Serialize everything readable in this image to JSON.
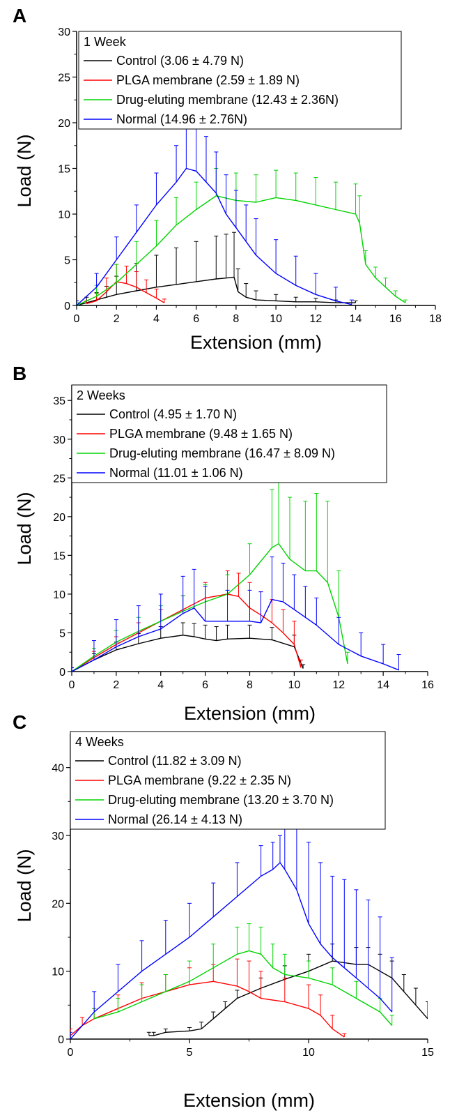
{
  "chart_data": [
    {
      "type": "line",
      "panel_label": "A",
      "legend_title": "1 Week",
      "xlabel": "Extension (mm)",
      "ylabel": "Load (N)",
      "xlim": [
        0,
        18
      ],
      "ylim": [
        0,
        30
      ],
      "xticks": [
        0,
        2,
        4,
        6,
        8,
        10,
        12,
        14,
        16,
        18
      ],
      "yticks": [
        0,
        5,
        10,
        15,
        20,
        25,
        30
      ],
      "legend_position": "top-left",
      "grid": false,
      "series": [
        {
          "name": "Control (3.06 ± 4.79 N)",
          "color": "#000000",
          "x": [
            0,
            0.5,
            1,
            1.5,
            2,
            3,
            4,
            5,
            6,
            7,
            7.5,
            7.9,
            8.1,
            8.5,
            9,
            10,
            11,
            12,
            13,
            14
          ],
          "y": [
            0,
            0.3,
            0.6,
            0.9,
            1.2,
            1.6,
            2.0,
            2.3,
            2.6,
            2.9,
            3.0,
            3.1,
            1.5,
            0.9,
            0.6,
            0.5,
            0.4,
            0.4,
            0.3,
            0.3
          ],
          "err": [
            0.5,
            0.6,
            0.8,
            1.2,
            2.0,
            3.0,
            3.5,
            4.0,
            4.4,
            4.7,
            4.8,
            4.9,
            2.5,
            1.5,
            1.0,
            0.7,
            0.5,
            0.4,
            0.3,
            0.2
          ]
        },
        {
          "name": "PLGA membrane (2.59 ± 1.89 N)",
          "color": "#ff0000",
          "x": [
            0.5,
            1,
            1.5,
            2,
            2.5,
            3,
            3.5,
            4,
            4.4
          ],
          "y": [
            0.2,
            0.5,
            1.5,
            2.6,
            2.4,
            2.0,
            1.4,
            0.8,
            0.3
          ],
          "err": [
            0.3,
            0.8,
            1.5,
            1.9,
            1.9,
            1.7,
            1.4,
            1.0,
            0.4
          ]
        },
        {
          "name": "Drug-eluting membrane (12.43 ± 2.36N)",
          "color": "#00d400",
          "x": [
            0,
            1,
            2,
            3,
            4,
            5,
            6,
            7,
            8,
            9,
            10,
            11,
            12,
            13,
            14,
            14.2,
            14.5,
            15,
            15.5,
            16,
            16.5
          ],
          "y": [
            0,
            1.0,
            2.5,
            4.5,
            6.5,
            8.8,
            10.5,
            12.0,
            11.5,
            11.3,
            11.8,
            11.5,
            11.0,
            10.5,
            10.0,
            9.0,
            4.5,
            3.0,
            2.0,
            1.0,
            0.3
          ],
          "err": [
            0.3,
            1.2,
            2.0,
            2.5,
            2.8,
            3.0,
            3.0,
            3.0,
            3.0,
            3.0,
            3.0,
            3.0,
            3.0,
            3.0,
            3.3,
            3.0,
            1.5,
            1.2,
            1.0,
            0.6,
            0.3
          ]
        },
        {
          "name": "Normal (14.96 ± 2.76N)",
          "color": "#0000ff",
          "x": [
            0,
            1,
            2,
            3,
            4,
            5,
            5.5,
            6,
            6.5,
            7,
            7.5,
            8,
            8.5,
            9,
            10,
            11,
            12,
            13,
            13.8
          ],
          "y": [
            0,
            2.0,
            5.0,
            8.0,
            11.0,
            13.5,
            15.0,
            14.7,
            13.5,
            12.3,
            10.0,
            8.5,
            7.0,
            5.5,
            3.5,
            2.2,
            1.2,
            0.5,
            0.1
          ],
          "err": [
            0.5,
            1.5,
            2.5,
            3.0,
            3.5,
            4.0,
            4.8,
            5.2,
            5.0,
            4.5,
            4.3,
            4.1,
            4.0,
            4.0,
            3.7,
            3.2,
            2.3,
            1.5,
            0.5
          ]
        }
      ]
    },
    {
      "type": "line",
      "panel_label": "B",
      "legend_title": "2 Weeks",
      "xlabel": "Extension (mm)",
      "ylabel": "Load (N)",
      "xlim": [
        0,
        16
      ],
      "ylim": [
        0,
        37
      ],
      "xticks": [
        0,
        2,
        4,
        6,
        8,
        10,
        12,
        14,
        16
      ],
      "yticks": [
        0,
        5,
        10,
        15,
        20,
        25,
        30,
        35
      ],
      "legend_position": "top-left",
      "grid": false,
      "series": [
        {
          "name": "Control (4.95 ± 1.70 N)",
          "color": "#000000",
          "x": [
            0,
            1,
            2,
            3,
            4,
            5,
            5.5,
            6,
            6.5,
            7,
            8,
            9,
            10,
            10.4
          ],
          "y": [
            0,
            1.5,
            2.8,
            3.6,
            4.3,
            4.7,
            4.5,
            4.2,
            4.0,
            4.2,
            4.3,
            4.1,
            3.2,
            0.4
          ],
          "err": [
            0.5,
            0.8,
            1.0,
            1.3,
            1.5,
            1.6,
            1.7,
            1.8,
            1.8,
            1.8,
            1.7,
            1.6,
            1.5,
            0.5
          ]
        },
        {
          "name": "PLGA membrane (9.48 ± 1.65 N)",
          "color": "#ff0000",
          "x": [
            0,
            1,
            2,
            3,
            4,
            5,
            6,
            7,
            7.5,
            8,
            8.5,
            9,
            9.5,
            10,
            10.3
          ],
          "y": [
            0,
            1.8,
            3.5,
            5.0,
            6.5,
            8.0,
            9.5,
            10.0,
            9.7,
            8.2,
            7.3,
            6.3,
            5.0,
            3.5,
            0.5
          ],
          "err": [
            0.5,
            0.8,
            1.0,
            1.3,
            1.5,
            1.8,
            2.0,
            3.0,
            3.0,
            3.3,
            3.0,
            3.0,
            3.0,
            3.0,
            1.0
          ]
        },
        {
          "name": "Drug-eluting membrane (16.47 ± 8.09 N)",
          "color": "#00d400",
          "x": [
            0,
            1,
            2,
            3,
            4,
            5,
            6,
            7,
            8,
            9,
            9.3,
            9.8,
            10.5,
            11,
            11.5,
            12,
            12.4
          ],
          "y": [
            0,
            2.0,
            3.8,
            5.2,
            6.5,
            7.8,
            9.0,
            10.0,
            12.5,
            16.0,
            16.5,
            14.5,
            13.0,
            13.0,
            11.5,
            7.0,
            1.0
          ],
          "err": [
            0.5,
            1.0,
            1.5,
            1.8,
            2.0,
            2.0,
            2.2,
            2.5,
            4.0,
            7.5,
            8.0,
            8.0,
            9.0,
            10.0,
            10.5,
            6.0,
            1.5
          ]
        },
        {
          "name": "Normal (11.01 ± 1.06 N)",
          "color": "#0000ff",
          "x": [
            0,
            1,
            2,
            3,
            4,
            5,
            5.5,
            6,
            7,
            8,
            8.5,
            9,
            9.5,
            10,
            10.5,
            11,
            12,
            13,
            14,
            14.7
          ],
          "y": [
            0,
            1.5,
            3.2,
            4.5,
            5.5,
            7.5,
            8.2,
            6.5,
            6.5,
            6.5,
            6.3,
            9.3,
            9.0,
            8.0,
            7.0,
            6.0,
            3.5,
            2.0,
            1.0,
            0.2
          ],
          "err": [
            0.5,
            2.5,
            3.5,
            4.0,
            4.5,
            4.8,
            5.0,
            4.5,
            4.0,
            4.0,
            4.0,
            5.5,
            5.0,
            4.5,
            4.0,
            3.5,
            3.5,
            3.0,
            2.5,
            2.0
          ]
        }
      ]
    },
    {
      "type": "line",
      "panel_label": "C",
      "legend_title": "4 Weeks",
      "xlabel": "Extension (mm)",
      "ylabel": "Load (N)",
      "xlim": [
        0,
        15
      ],
      "ylim": [
        0,
        45
      ],
      "xticks": [
        0,
        5,
        10,
        15
      ],
      "yticks": [
        0,
        10,
        20,
        30,
        40
      ],
      "legend_position": "top-left",
      "grid": false,
      "series": [
        {
          "name": "Control (11.82 ± 3.09 N)",
          "color": "#000000",
          "x": [
            3.3,
            3.5,
            4,
            5,
            5.5,
            6,
            6.5,
            7,
            8,
            9,
            10,
            11,
            12,
            12.5,
            13,
            13.5,
            14,
            14.5,
            15
          ],
          "y": [
            0.5,
            0.5,
            1.0,
            1.2,
            1.5,
            3.0,
            4.5,
            6.0,
            7.5,
            8.8,
            10.0,
            11.5,
            11.0,
            11.0,
            10.0,
            9.0,
            7.0,
            5.0,
            3.0
          ],
          "err": [
            0.5,
            0.5,
            0.5,
            0.5,
            1.0,
            1.0,
            1.0,
            1.2,
            1.5,
            2.0,
            2.5,
            2.5,
            2.5,
            2.5,
            2.5,
            2.5,
            2.5,
            2.5,
            2.5
          ]
        },
        {
          "name": "PLGA membrane (9.22 ± 2.35 N)",
          "color": "#ff0000",
          "x": [
            0,
            0.5,
            1,
            2,
            3,
            4,
            5,
            6,
            7,
            7.5,
            8,
            9,
            10,
            10.5,
            11,
            11.5
          ],
          "y": [
            0.5,
            2.0,
            3.0,
            4.5,
            6.0,
            7.0,
            8.0,
            8.5,
            7.8,
            7.0,
            6.0,
            5.5,
            4.5,
            3.5,
            1.5,
            0.3
          ],
          "err": [
            1.0,
            1.2,
            1.5,
            2.0,
            2.3,
            2.5,
            2.5,
            2.5,
            4.0,
            4.5,
            4.0,
            3.5,
            3.5,
            3.0,
            2.0,
            0.5
          ]
        },
        {
          "name": "Drug-eluting membrane (13.20 ± 3.70 N)",
          "color": "#00d400",
          "x": [
            1,
            2,
            3,
            4,
            5,
            6,
            7,
            7.5,
            8,
            8.5,
            9,
            10,
            11,
            12,
            13,
            13.5
          ],
          "y": [
            3.0,
            4.0,
            5.5,
            7.0,
            8.5,
            10.5,
            12.5,
            13.0,
            12.5,
            10.5,
            9.5,
            9.0,
            8.0,
            6.0,
            4.0,
            2.0
          ],
          "err": [
            1.5,
            2.0,
            2.5,
            2.5,
            3.0,
            3.5,
            4.0,
            4.0,
            4.0,
            3.5,
            3.0,
            2.5,
            2.5,
            2.5,
            2.0,
            1.5
          ]
        },
        {
          "name": "Normal (26.14 ± 4.13 N)",
          "color": "#0000ff",
          "x": [
            0,
            1,
            2,
            3,
            4,
            5,
            6,
            7,
            8,
            8.5,
            8.8,
            9,
            9.5,
            10,
            10.5,
            11,
            11.5,
            12,
            12.5,
            13,
            13.5
          ],
          "y": [
            0,
            4.0,
            7.0,
            10.0,
            12.5,
            15.0,
            18.0,
            21.0,
            24.0,
            25.0,
            26.0,
            25.0,
            22.0,
            17.0,
            14.0,
            12.0,
            10.5,
            9.0,
            7.5,
            6.0,
            4.0
          ],
          "err": [
            1.0,
            3.0,
            4.0,
            4.5,
            5.0,
            5.0,
            5.0,
            5.0,
            4.5,
            4.0,
            4.0,
            6.0,
            9.0,
            12.0,
            12.0,
            12.0,
            13.0,
            13.0,
            13.0,
            12.0,
            8.0
          ]
        }
      ]
    }
  ]
}
